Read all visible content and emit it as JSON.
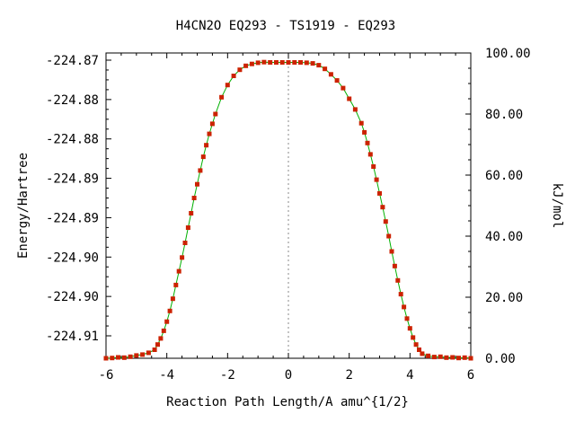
{
  "chart_data": {
    "type": "line",
    "title": "H4CN2O   EQ293 - TS1919 - EQ293",
    "xlabel": "Reaction Path Length/A amu^{1/2}",
    "ylabel": "Energy/Hartree",
    "y2label": "kJ/mol",
    "xlim": [
      -6,
      6
    ],
    "ylim_kjmol": [
      0,
      100
    ],
    "x_ticks": [
      "-6",
      "-4",
      "-2",
      "0",
      "2",
      "4",
      "6"
    ],
    "y_ticks_left": [
      "-224.87",
      "-224.88",
      "-224.88",
      "-224.89",
      "-224.89",
      "-224.90",
      "-224.90",
      "-224.91"
    ],
    "y_ticks_right": [
      "0.00",
      "20.00",
      "40.00",
      "60.00",
      "80.00",
      "100.00"
    ],
    "vertical_reference_x": 0,
    "colors": {
      "curve": "#00b000",
      "points": "#cc2200",
      "reference_line": "#888888"
    },
    "series": [
      {
        "name": "",
        "x": [
          -6.0,
          -5.8,
          -5.6,
          -5.4,
          -5.2,
          -5.0,
          -4.8,
          -4.6,
          -4.4,
          -4.3,
          -4.2,
          -4.1,
          -4.0,
          -3.9,
          -3.8,
          -3.7,
          -3.6,
          -3.5,
          -3.4,
          -3.3,
          -3.2,
          -3.1,
          -3.0,
          -2.9,
          -2.8,
          -2.7,
          -2.6,
          -2.5,
          -2.4,
          -2.2,
          -2.0,
          -1.8,
          -1.6,
          -1.4,
          -1.2,
          -1.0,
          -0.8,
          -0.6,
          -0.4,
          -0.2,
          0.0,
          0.2,
          0.4,
          0.6,
          0.8,
          1.0,
          1.2,
          1.4,
          1.6,
          1.8,
          2.0,
          2.2,
          2.4,
          2.5,
          2.6,
          2.7,
          2.8,
          2.9,
          3.0,
          3.1,
          3.2,
          3.3,
          3.4,
          3.5,
          3.6,
          3.7,
          3.8,
          3.9,
          4.0,
          4.1,
          4.2,
          4.3,
          4.4,
          4.6,
          4.8,
          5.0,
          5.2,
          5.4,
          5.6,
          5.8,
          6.0
        ],
        "y": [
          0.0,
          0.1,
          0.3,
          0.2,
          0.5,
          0.9,
          1.2,
          1.8,
          2.8,
          4.5,
          6.5,
          9.0,
          12.0,
          15.5,
          19.5,
          24.0,
          28.5,
          33.0,
          37.8,
          42.8,
          47.5,
          52.5,
          57.0,
          61.5,
          66.0,
          69.8,
          73.5,
          76.8,
          80.0,
          85.5,
          89.5,
          92.5,
          94.5,
          95.8,
          96.4,
          96.8,
          97.0,
          96.9,
          96.9,
          96.9,
          96.9,
          96.9,
          96.9,
          96.8,
          96.6,
          96.0,
          94.8,
          93.0,
          91.0,
          88.5,
          85.0,
          81.5,
          77.0,
          74.0,
          70.5,
          66.8,
          62.8,
          58.5,
          54.0,
          49.5,
          44.8,
          40.0,
          35.0,
          30.2,
          25.5,
          21.0,
          16.8,
          13.0,
          9.8,
          6.8,
          4.5,
          2.8,
          1.5,
          0.8,
          0.4,
          0.5,
          0.2,
          0.3,
          0.1,
          0.2,
          0.0
        ]
      }
    ]
  }
}
